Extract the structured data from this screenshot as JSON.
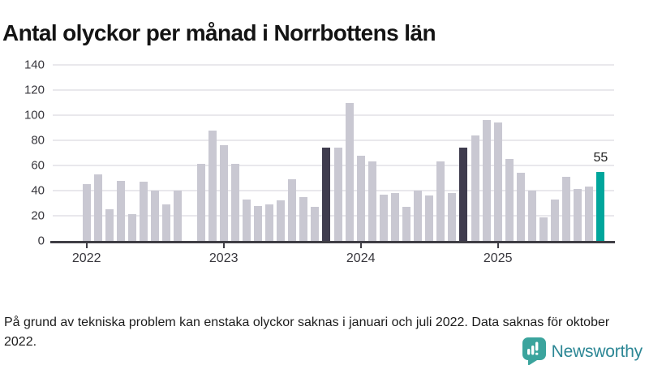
{
  "title": "Antal olyckor per månad i Norrbottens län",
  "footnote": "På grund av tekniska problem kan enstaka olyckor saknas i januari och juli 2022. Data saknas för oktober 2022.",
  "brand": {
    "name": "Newsworthy",
    "icon": "newsworthy-speech-bubble-chart-icon",
    "icon_color": "#3ba49d",
    "wordmark_color": "#2c8795"
  },
  "colors": {
    "bar_default": "#c9c8d2",
    "bar_dark": "#3f3c4e",
    "bar_accent": "#00a69c",
    "gridline": "#e9e8ec",
    "axis": "#3f3e45"
  },
  "chart_data": {
    "type": "bar",
    "title": "Antal olyckor per månad i Norrbottens län",
    "xlabel": "",
    "ylabel": "",
    "ylim": [
      0,
      140
    ],
    "grid": "horizontal",
    "y_ticks": [
      0,
      20,
      40,
      60,
      80,
      100,
      120,
      140
    ],
    "x_year_ticks": [
      {
        "label": "2022",
        "month_index": 0
      },
      {
        "label": "2023",
        "month_index": 12
      },
      {
        "label": "2024",
        "month_index": 24
      },
      {
        "label": "2025",
        "month_index": 36
      }
    ],
    "months": [
      {
        "month": "2022-01",
        "value": 45,
        "color": "default"
      },
      {
        "month": "2022-02",
        "value": 53,
        "color": "default"
      },
      {
        "month": "2022-03",
        "value": 25,
        "color": "default"
      },
      {
        "month": "2022-04",
        "value": 48,
        "color": "default"
      },
      {
        "month": "2022-05",
        "value": 21,
        "color": "default"
      },
      {
        "month": "2022-06",
        "value": 47,
        "color": "default"
      },
      {
        "month": "2022-07",
        "value": 40,
        "color": "default"
      },
      {
        "month": "2022-08",
        "value": 29,
        "color": "default"
      },
      {
        "month": "2022-09",
        "value": 40,
        "color": "default"
      },
      {
        "month": "2022-10",
        "value": null,
        "color": "default"
      },
      {
        "month": "2022-11",
        "value": 61,
        "color": "default"
      },
      {
        "month": "2022-12",
        "value": 88,
        "color": "default"
      },
      {
        "month": "2023-01",
        "value": 76,
        "color": "default"
      },
      {
        "month": "2023-02",
        "value": 61,
        "color": "default"
      },
      {
        "month": "2023-03",
        "value": 33,
        "color": "default"
      },
      {
        "month": "2023-04",
        "value": 28,
        "color": "default"
      },
      {
        "month": "2023-05",
        "value": 29,
        "color": "default"
      },
      {
        "month": "2023-06",
        "value": 32,
        "color": "default"
      },
      {
        "month": "2023-07",
        "value": 49,
        "color": "default"
      },
      {
        "month": "2023-08",
        "value": 35,
        "color": "default"
      },
      {
        "month": "2023-09",
        "value": 27,
        "color": "default"
      },
      {
        "month": "2023-10",
        "value": 74,
        "color": "dark"
      },
      {
        "month": "2023-11",
        "value": 74,
        "color": "default"
      },
      {
        "month": "2023-12",
        "value": 110,
        "color": "default"
      },
      {
        "month": "2024-01",
        "value": 68,
        "color": "default"
      },
      {
        "month": "2024-02",
        "value": 63,
        "color": "default"
      },
      {
        "month": "2024-03",
        "value": 37,
        "color": "default"
      },
      {
        "month": "2024-04",
        "value": 38,
        "color": "default"
      },
      {
        "month": "2024-05",
        "value": 27,
        "color": "default"
      },
      {
        "month": "2024-06",
        "value": 40,
        "color": "default"
      },
      {
        "month": "2024-07",
        "value": 36,
        "color": "default"
      },
      {
        "month": "2024-08",
        "value": 63,
        "color": "default"
      },
      {
        "month": "2024-09",
        "value": 38,
        "color": "default"
      },
      {
        "month": "2024-10",
        "value": 74,
        "color": "dark"
      },
      {
        "month": "2024-11",
        "value": 84,
        "color": "default"
      },
      {
        "month": "2024-12",
        "value": 96,
        "color": "default"
      },
      {
        "month": "2025-01",
        "value": 94,
        "color": "default"
      },
      {
        "month": "2025-02",
        "value": 65,
        "color": "default"
      },
      {
        "month": "2025-03",
        "value": 54,
        "color": "default"
      },
      {
        "month": "2025-04",
        "value": 40,
        "color": "default"
      },
      {
        "month": "2025-05",
        "value": 19,
        "color": "default"
      },
      {
        "month": "2025-06",
        "value": 33,
        "color": "default"
      },
      {
        "month": "2025-07",
        "value": 51,
        "color": "default"
      },
      {
        "month": "2025-08",
        "value": 41,
        "color": "default"
      },
      {
        "month": "2025-09",
        "value": 43,
        "color": "default"
      },
      {
        "month": "2025-10",
        "value": 55,
        "color": "accent",
        "data_label": "55"
      }
    ]
  }
}
